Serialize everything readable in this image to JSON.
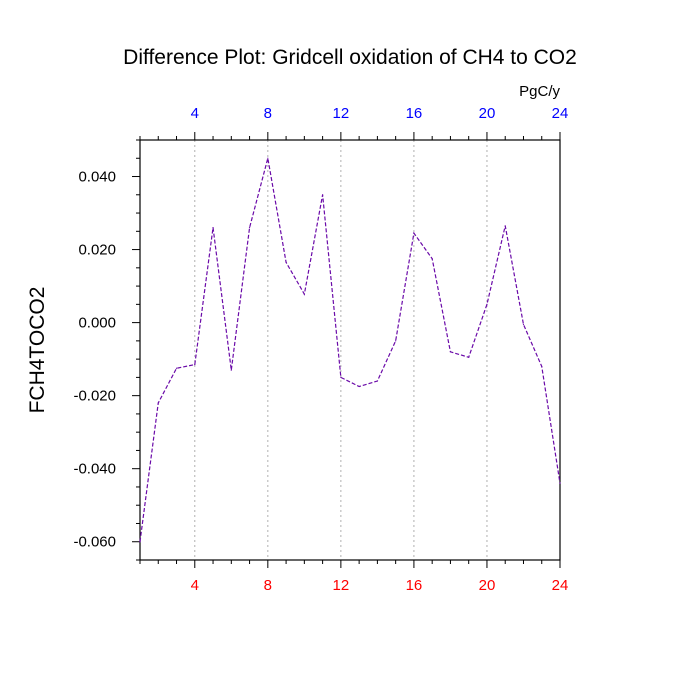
{
  "chart_data": {
    "type": "line",
    "title": "Difference Plot: Gridcell oxidation of CH4 to CO2",
    "units": "PgC/y",
    "ylabel": "FCH4TOCO2",
    "xlabel": "",
    "xlim": [
      1,
      24
    ],
    "ylim": [
      -0.065,
      0.05
    ],
    "x_ticks": [
      "4",
      "8",
      "12",
      "16",
      "20",
      "24"
    ],
    "x_tick_values": [
      4,
      8,
      12,
      16,
      20,
      24
    ],
    "y_ticks": [
      "-0.060",
      "-0.040",
      "-0.020",
      "0.000",
      "0.020",
      "0.040"
    ],
    "y_tick_values": [
      -0.06,
      -0.04,
      -0.02,
      0.0,
      0.02,
      0.04
    ],
    "grid": "vertical dotted at major x ticks",
    "series": [
      {
        "x": [
          1,
          2,
          3,
          4,
          5,
          6,
          7,
          8,
          9,
          10,
          11,
          12,
          13,
          14,
          15,
          16,
          17,
          18,
          19,
          20,
          21,
          22,
          23,
          24
        ],
        "values": [
          -0.06,
          -0.022,
          -0.0125,
          -0.0115,
          0.026,
          -0.013,
          0.026,
          0.045,
          0.0165,
          0.0078,
          0.035,
          -0.015,
          -0.0175,
          -0.016,
          -0.005,
          0.0245,
          0.0175,
          -0.008,
          -0.0095,
          0.005,
          0.0265,
          -0.0005,
          -0.012,
          -0.044
        ]
      }
    ],
    "colors": {
      "line": "#6a0aa8",
      "bottom_ticks": "#ff0000",
      "top_ticks": "#0000ff",
      "grid": "#b0b0b0"
    }
  }
}
